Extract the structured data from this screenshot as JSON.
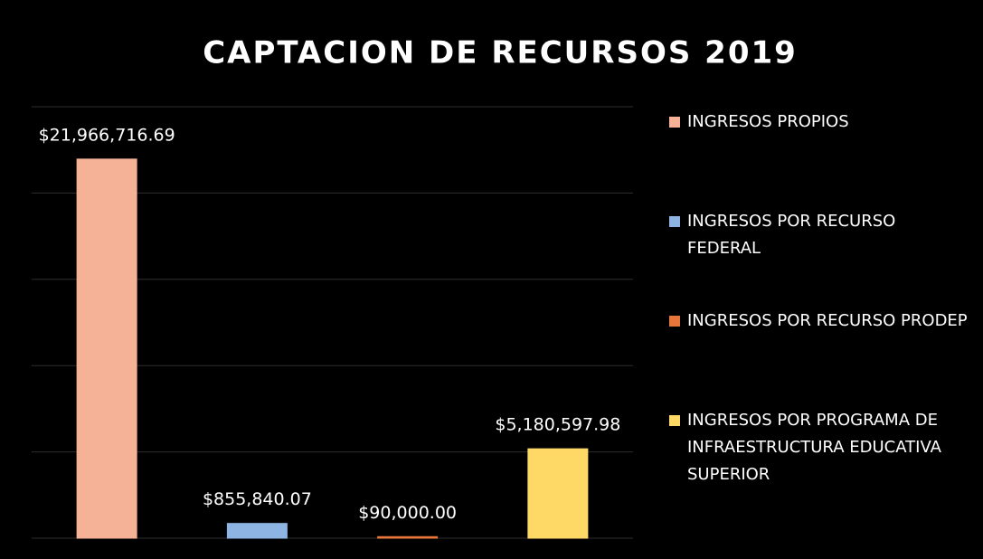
{
  "chart_data": {
    "type": "bar",
    "title": "CAPTACION DE RECURSOS 2019",
    "series": [
      {
        "name": "INGRESOS PROPIOS",
        "color": "#f5b296",
        "values": [
          21966716.69
        ],
        "value_labels": [
          "$21,966,716.69"
        ]
      },
      {
        "name": "INGRESOS POR RECURSO FEDERAL",
        "color": "#8db4e2",
        "values": [
          855840.07
        ],
        "value_labels": [
          "$855,840.07"
        ]
      },
      {
        "name": "INGRESOS POR RECURSO PRODEP",
        "color": "#e8763a",
        "values": [
          90000.0
        ],
        "value_labels": [
          "$90,000.00"
        ]
      },
      {
        "name": "INGRESOS POR PROGRAMA DE INFRAESTRUCTURA EDUCATIVA SUPERIOR",
        "color": "#ffd966",
        "values": [
          5180597.98
        ],
        "value_labels": [
          "$5,180,597.98"
        ]
      }
    ],
    "ylim": [
      0,
      25000000
    ],
    "yticks": [
      0,
      5000000,
      10000000,
      15000000,
      20000000,
      25000000
    ],
    "grid": true,
    "legend": "right"
  }
}
